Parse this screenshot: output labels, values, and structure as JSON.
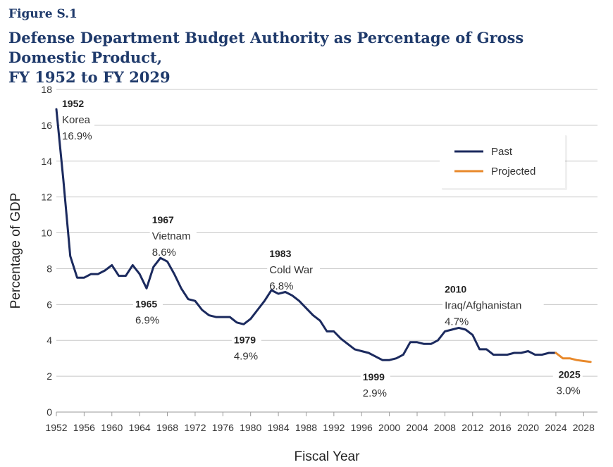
{
  "figure": {
    "label": "Figure S.1",
    "title_line1": "Defense Department Budget Authority as Percentage of Gross Domestic Product,",
    "title_line2": "FY 1952 to FY 2029"
  },
  "chart_data": {
    "type": "line",
    "xlabel": "Fiscal Year",
    "ylabel": "Percentage of GDP",
    "xlim": [
      1952,
      2029
    ],
    "ylim": [
      0,
      18
    ],
    "x_ticks": [
      1952,
      1956,
      1960,
      1964,
      1968,
      1972,
      1976,
      1980,
      1984,
      1988,
      1992,
      1996,
      2000,
      2004,
      2008,
      2012,
      2016,
      2020,
      2024,
      2028
    ],
    "y_ticks": [
      0,
      2,
      4,
      6,
      8,
      10,
      12,
      14,
      16,
      18
    ],
    "grid": "horizontal",
    "legend_position": "top-right",
    "series": [
      {
        "name": "Past",
        "color": "#1b2a5e",
        "x": [
          1952,
          1953,
          1954,
          1955,
          1956,
          1957,
          1958,
          1959,
          1960,
          1961,
          1962,
          1963,
          1964,
          1965,
          1966,
          1967,
          1968,
          1969,
          1970,
          1971,
          1972,
          1973,
          1974,
          1975,
          1976,
          1977,
          1978,
          1979,
          1980,
          1981,
          1982,
          1983,
          1984,
          1985,
          1986,
          1987,
          1988,
          1989,
          1990,
          1991,
          1992,
          1993,
          1994,
          1995,
          1996,
          1997,
          1998,
          1999,
          2000,
          2001,
          2002,
          2003,
          2004,
          2005,
          2006,
          2007,
          2008,
          2009,
          2010,
          2011,
          2012,
          2013,
          2014,
          2015,
          2016,
          2017,
          2018,
          2019,
          2020,
          2021,
          2022,
          2023,
          2024
        ],
        "y": [
          16.9,
          13.0,
          8.7,
          7.5,
          7.5,
          7.7,
          7.7,
          7.9,
          8.2,
          7.6,
          7.6,
          8.2,
          7.7,
          6.9,
          8.1,
          8.6,
          8.4,
          7.7,
          6.9,
          6.3,
          6.2,
          5.7,
          5.4,
          5.3,
          5.3,
          5.3,
          5.0,
          4.9,
          5.2,
          5.7,
          6.2,
          6.8,
          6.6,
          6.7,
          6.5,
          6.2,
          5.8,
          5.4,
          5.1,
          4.5,
          4.5,
          4.1,
          3.8,
          3.5,
          3.4,
          3.3,
          3.1,
          2.9,
          2.9,
          3.0,
          3.2,
          3.9,
          3.9,
          3.8,
          3.8,
          4.0,
          4.5,
          4.6,
          4.7,
          4.6,
          4.3,
          3.5,
          3.5,
          3.2,
          3.2,
          3.2,
          3.3,
          3.3,
          3.4,
          3.2,
          3.2,
          3.3,
          3.3
        ]
      },
      {
        "name": "Projected",
        "color": "#e8892b",
        "x": [
          2024,
          2025,
          2026,
          2027,
          2028,
          2029
        ],
        "y": [
          3.3,
          3.0,
          3.0,
          2.9,
          2.85,
          2.8
        ]
      }
    ],
    "annotations": [
      {
        "year": "1952",
        "lines": [
          "Korea",
          "16.9%"
        ],
        "x": 1952,
        "y": 16.9
      },
      {
        "year": "1965",
        "lines": [
          "6.9%"
        ],
        "x": 1965,
        "y": 6.9
      },
      {
        "year": "1967",
        "lines": [
          "Vietnam",
          "8.6%"
        ],
        "x": 1967,
        "y": 8.6
      },
      {
        "year": "1979",
        "lines": [
          "4.9%"
        ],
        "x": 1979,
        "y": 4.9
      },
      {
        "year": "1983",
        "lines": [
          "Cold War",
          "6.8%"
        ],
        "x": 1983,
        "y": 6.8
      },
      {
        "year": "1999",
        "lines": [
          "2.9%"
        ],
        "x": 1999,
        "y": 2.9
      },
      {
        "year": "2010",
        "lines": [
          "Iraq/Afghanistan",
          "4.7%"
        ],
        "x": 2010,
        "y": 4.7
      },
      {
        "year": "2025",
        "lines": [
          "3.0%"
        ],
        "x": 2025,
        "y": 3.0
      }
    ]
  }
}
